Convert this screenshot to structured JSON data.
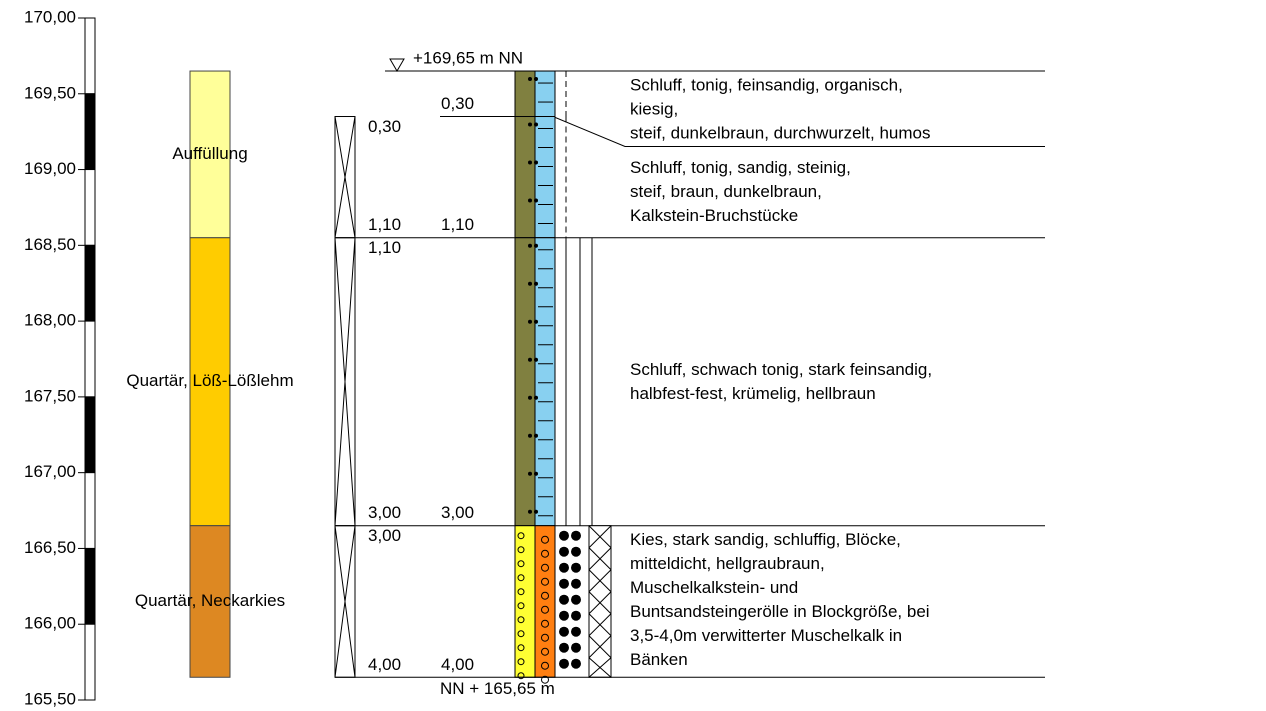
{
  "elevation_axis": {
    "ticks": [
      {
        "value": 170,
        "label": "170,00"
      },
      {
        "value": 169.5,
        "label": "169,50"
      },
      {
        "value": 169,
        "label": "169,00"
      },
      {
        "value": 168.5,
        "label": "168,50"
      },
      {
        "value": 168,
        "label": "168,00"
      },
      {
        "value": 167.5,
        "label": "167,50"
      },
      {
        "value": 167,
        "label": "167,00"
      },
      {
        "value": 166.5,
        "label": "166,50"
      },
      {
        "value": 166,
        "label": "166,00"
      },
      {
        "value": 165.5,
        "label": "165,50"
      }
    ]
  },
  "top_elevation": {
    "value": 169.65,
    "label": "+169,65 m NN"
  },
  "bottom_elevation": {
    "value": 165.65,
    "label": "NN + 165,65 m"
  },
  "stratigraphy": [
    {
      "name": "Auffüllung",
      "bottom": 1.1,
      "color": "#ffff99"
    },
    {
      "name": "Quartär, Löß-Lößlehm",
      "bottom": 3.0,
      "color": "#ffcc00"
    },
    {
      "name": "Quartär, Neckarkies",
      "bottom": 4.0,
      "color": "#dd8822"
    }
  ],
  "samples": [
    {
      "top": {
        "value": 0.3,
        "label": "0,30"
      },
      "bottom": {
        "value": 1.1,
        "label": "1,10"
      }
    },
    {
      "top": {
        "value": 1.1,
        "label": "1,10"
      },
      "bottom": {
        "value": 3.0,
        "label": "3,00"
      }
    },
    {
      "top": {
        "value": 3.0,
        "label": "3,00"
      },
      "bottom": {
        "value": 4.0,
        "label": "4,00"
      }
    }
  ],
  "layers": [
    {
      "bottom": {
        "value": 0.3,
        "label": "0,30"
      },
      "colors": [
        "#808040",
        "#88d0f0"
      ],
      "description": [
        "Schluff, tonig, feinsandig, organisch,",
        "kiesig,",
        "steif, dunkelbraun, durchwurzelt, humos"
      ]
    },
    {
      "bottom": {
        "value": 1.1,
        "label": "1,10"
      },
      "colors": [
        "#808040",
        "#88d0f0"
      ],
      "description": [
        "Schluff, tonig, sandig, steinig,",
        "steif, braun, dunkelbraun,",
        "Kalkstein-Bruchstücke"
      ]
    },
    {
      "bottom": {
        "value": 3.0,
        "label": "3,00"
      },
      "colors": [
        "#808040",
        "#88d0f0"
      ],
      "description": [
        "Schluff, schwach tonig, stark feinsandig,",
        "halbfest-fest, krümelig, hellbraun"
      ]
    },
    {
      "bottom": {
        "value": 4.0,
        "label": "4,00"
      },
      "colors": [
        "#ffff33",
        "#ff7f11"
      ],
      "description": [
        "Kies, stark sandig, schluffig, Blöcke,",
        "mitteldicht, hellgraubraun,",
        "Muschelkalkstein- und",
        "Buntsandsteingerölle in Blockgröße, bei",
        "3,5-4,0m verwitterter Muschelkalk in",
        "Bänken"
      ]
    }
  ]
}
